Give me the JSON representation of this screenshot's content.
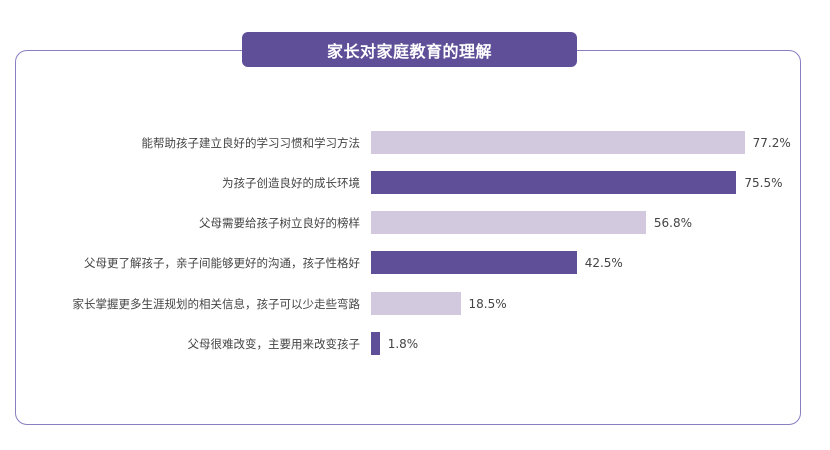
{
  "title": "家长对家庭教育的理解",
  "colors": {
    "accent": "#5f4f98",
    "light": "#d3c9df",
    "frame": "#8a7dc0"
  },
  "chart_data": {
    "type": "bar",
    "orientation": "horizontal",
    "title": "家长对家庭教育的理解",
    "categories": [
      "能帮助孩子建立良好的学习习惯和学习方法",
      "为孩子创造良好的成长环境",
      "父母需要给孩子树立良好的榜样",
      "父母更了解孩子，亲子间能够更好的沟通，孩子性格好",
      "家长掌握更多生涯规划的相关信息，孩子可以少走些弯路",
      "父母很难改变，主要用来改变孩子"
    ],
    "values": [
      77.2,
      75.5,
      56.8,
      42.5,
      18.5,
      1.8
    ],
    "value_labels": [
      "77.2%",
      "75.5%",
      "56.8%",
      "42.5%",
      "18.5%",
      "1.8%"
    ],
    "bar_colors": [
      "#d3c9df",
      "#5f4f98",
      "#d3c9df",
      "#5f4f98",
      "#d3c9df",
      "#5f4f98"
    ],
    "xlabel": "",
    "ylabel": "",
    "unit": "%",
    "grid": false,
    "legend": false
  }
}
